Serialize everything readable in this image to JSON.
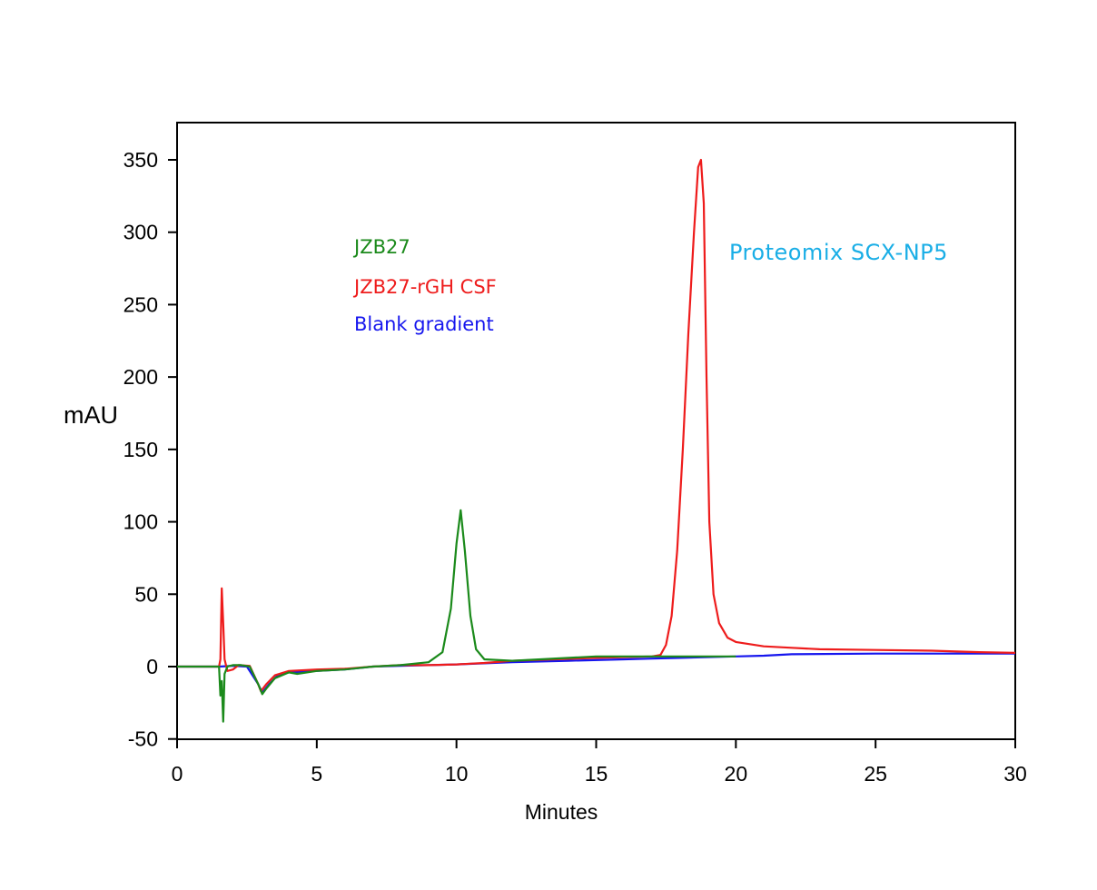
{
  "chart_data": {
    "type": "line",
    "title": "",
    "xlabel": "Minutes",
    "ylabel": "mAU",
    "xlim": [
      0,
      30
    ],
    "ylim": [
      -50,
      376
    ],
    "xticks": [
      0,
      5,
      10,
      15,
      20,
      25,
      30
    ],
    "yticks": [
      -50,
      0,
      50,
      100,
      150,
      200,
      250,
      300,
      350
    ],
    "grid": false,
    "legend_placement": "upper-left inside",
    "annotation": {
      "text": "Proteomix SCX-NP5",
      "color": "#1aaee6"
    },
    "series": [
      {
        "name": "JZB27",
        "color": "#1b8a1b",
        "points": [
          [
            0,
            0
          ],
          [
            1.5,
            0
          ],
          [
            1.55,
            -20
          ],
          [
            1.6,
            -10
          ],
          [
            1.65,
            -38
          ],
          [
            1.7,
            -5
          ],
          [
            1.8,
            0
          ],
          [
            2.0,
            1
          ],
          [
            2.3,
            1
          ],
          [
            2.6,
            0
          ],
          [
            2.9,
            -12
          ],
          [
            3.05,
            -19
          ],
          [
            3.2,
            -15
          ],
          [
            3.5,
            -8
          ],
          [
            4.0,
            -4
          ],
          [
            4.3,
            -5
          ],
          [
            5,
            -3
          ],
          [
            6,
            -2
          ],
          [
            7,
            0
          ],
          [
            8,
            1
          ],
          [
            9,
            3
          ],
          [
            9.5,
            10
          ],
          [
            9.8,
            40
          ],
          [
            10.0,
            85
          ],
          [
            10.15,
            108
          ],
          [
            10.3,
            80
          ],
          [
            10.5,
            35
          ],
          [
            10.7,
            12
          ],
          [
            11,
            5
          ],
          [
            12,
            4
          ],
          [
            15,
            7
          ],
          [
            17,
            7
          ],
          [
            20,
            7
          ]
        ]
      },
      {
        "name": "JZB27-rGH CSF",
        "color": "#ee1c1c",
        "points": [
          [
            0,
            0
          ],
          [
            1.5,
            0
          ],
          [
            1.55,
            5
          ],
          [
            1.6,
            54
          ],
          [
            1.65,
            30
          ],
          [
            1.7,
            5
          ],
          [
            1.8,
            -3
          ],
          [
            2.0,
            -2
          ],
          [
            2.2,
            1
          ],
          [
            2.6,
            0.5
          ],
          [
            2.9,
            -12
          ],
          [
            3.0,
            -17
          ],
          [
            3.2,
            -12
          ],
          [
            3.5,
            -6
          ],
          [
            4,
            -3
          ],
          [
            5,
            -2
          ],
          [
            6,
            -1.5
          ],
          [
            7,
            0
          ],
          [
            8,
            1
          ],
          [
            9,
            1
          ],
          [
            10,
            1.5
          ],
          [
            11,
            2.5
          ],
          [
            12,
            4
          ],
          [
            15,
            6
          ],
          [
            17,
            7
          ],
          [
            17.3,
            8
          ],
          [
            17.5,
            15
          ],
          [
            17.7,
            35
          ],
          [
            17.9,
            80
          ],
          [
            18.1,
            150
          ],
          [
            18.3,
            230
          ],
          [
            18.5,
            300
          ],
          [
            18.65,
            345
          ],
          [
            18.75,
            350
          ],
          [
            18.85,
            320
          ],
          [
            18.95,
            200
          ],
          [
            19.05,
            100
          ],
          [
            19.2,
            50
          ],
          [
            19.4,
            30
          ],
          [
            19.7,
            20
          ],
          [
            20,
            17
          ],
          [
            21,
            14
          ],
          [
            22,
            13
          ],
          [
            23,
            12
          ],
          [
            25,
            11.5
          ],
          [
            27,
            11
          ],
          [
            28.7,
            10
          ],
          [
            30,
            9.5
          ]
        ]
      },
      {
        "name": "Blank gradient",
        "color": "#1616ee",
        "points": [
          [
            0,
            0
          ],
          [
            1.5,
            0
          ],
          [
            2,
            0.5
          ],
          [
            2.5,
            0
          ],
          [
            2.9,
            -12
          ],
          [
            3.05,
            -18
          ],
          [
            3.3,
            -12
          ],
          [
            3.6,
            -6
          ],
          [
            4,
            -4
          ],
          [
            5,
            -3
          ],
          [
            6,
            -2
          ],
          [
            7,
            0
          ],
          [
            8,
            0.5
          ],
          [
            10,
            1.5
          ],
          [
            12,
            3
          ],
          [
            14,
            4
          ],
          [
            16,
            5
          ],
          [
            17,
            5.5
          ],
          [
            18,
            6
          ],
          [
            20,
            7
          ],
          [
            21,
            7.5
          ],
          [
            22,
            8.5
          ],
          [
            25,
            9
          ],
          [
            27,
            9
          ],
          [
            30,
            9
          ]
        ]
      }
    ]
  }
}
